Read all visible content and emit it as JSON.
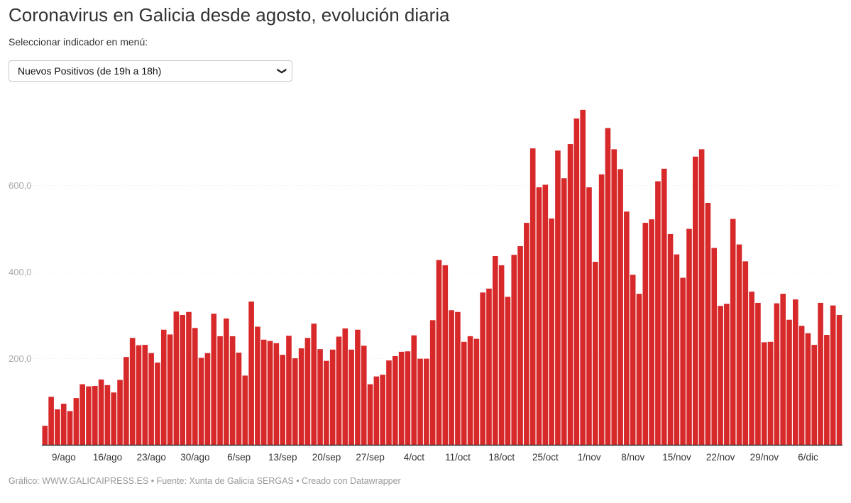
{
  "title": "Coronavirus en Galicia desde agosto, evolución diaria",
  "selector": {
    "label": "Seleccionar indicador en menú:",
    "selected": "Nuevos Positivos (de 19h a 18h)",
    "icon": "chevron-down-icon"
  },
  "footer": "Gráfico: WWW.GALICAIPRESS.ES • Fuente: Xunta de Galicia SERGAS • Creado con Datawrapper",
  "colors": {
    "bar": "#d7282a",
    "axis": "#333333",
    "tick_label": "#aaaaaa"
  },
  "chart_data": {
    "type": "bar",
    "title": "",
    "xlabel": "",
    "ylabel": "",
    "ylim": [
      0,
      780
    ],
    "grid": false,
    "y_ticks": [
      200,
      400,
      600
    ],
    "y_tick_labels": [
      "200,0",
      "400,0",
      "600,0"
    ],
    "x_tick_labels": [
      "9/ago",
      "16/ago",
      "23/ago",
      "30/ago",
      "6/sep",
      "13/sep",
      "20/sep",
      "27/sep",
      "4/oct",
      "11/oct",
      "18/oct",
      "25/oct",
      "1/nov",
      "8/nov",
      "15/nov",
      "22/nov",
      "29/nov",
      "6/dic"
    ],
    "categories": [
      "6/ago",
      "7/ago",
      "8/ago",
      "9/ago",
      "10/ago",
      "11/ago",
      "12/ago",
      "13/ago",
      "14/ago",
      "15/ago",
      "16/ago",
      "17/ago",
      "18/ago",
      "19/ago",
      "20/ago",
      "21/ago",
      "22/ago",
      "23/ago",
      "24/ago",
      "25/ago",
      "26/ago",
      "27/ago",
      "28/ago",
      "29/ago",
      "30/ago",
      "31/ago",
      "1/sep",
      "2/sep",
      "3/sep",
      "4/sep",
      "5/sep",
      "6/sep",
      "7/sep",
      "8/sep",
      "9/sep",
      "10/sep",
      "11/sep",
      "12/sep",
      "13/sep",
      "14/sep",
      "15/sep",
      "16/sep",
      "17/sep",
      "18/sep",
      "19/sep",
      "20/sep",
      "21/sep",
      "22/sep",
      "23/sep",
      "24/sep",
      "25/sep",
      "26/sep",
      "27/sep",
      "28/sep",
      "29/sep",
      "30/sep",
      "1/oct",
      "2/oct",
      "3/oct",
      "4/oct",
      "5/oct",
      "6/oct",
      "7/oct",
      "8/oct",
      "9/oct",
      "10/oct",
      "11/oct",
      "12/oct",
      "13/oct",
      "14/oct",
      "15/oct",
      "16/oct",
      "17/oct",
      "18/oct",
      "19/oct",
      "20/oct",
      "21/oct",
      "22/oct",
      "23/oct",
      "24/oct",
      "25/oct",
      "26/oct",
      "27/oct",
      "28/oct",
      "29/oct",
      "30/oct",
      "31/oct",
      "1/nov",
      "2/nov",
      "3/nov",
      "4/nov",
      "5/nov",
      "6/nov",
      "7/nov",
      "8/nov",
      "9/nov",
      "10/nov",
      "11/nov",
      "12/nov",
      "13/nov",
      "14/nov",
      "15/nov",
      "16/nov",
      "17/nov",
      "18/nov",
      "19/nov",
      "20/nov",
      "21/nov",
      "22/nov",
      "23/nov",
      "24/nov",
      "25/nov",
      "26/nov",
      "27/nov",
      "28/nov",
      "29/nov",
      "30/nov",
      "1/dic",
      "2/dic",
      "3/dic",
      "4/dic",
      "5/dic",
      "6/dic",
      "7/dic",
      "8/dic",
      "9/dic",
      "10/dic",
      "11/dic"
    ],
    "values": [
      44,
      111,
      82,
      95,
      78,
      108,
      140,
      135,
      136,
      151,
      138,
      121,
      150,
      203,
      247,
      230,
      231,
      212,
      190,
      266,
      255,
      308,
      300,
      307,
      270,
      201,
      212,
      303,
      251,
      292,
      251,
      213,
      160,
      331,
      273,
      243,
      240,
      235,
      208,
      252,
      200,
      223,
      247,
      280,
      221,
      194,
      220,
      250,
      269,
      220,
      266,
      229,
      140,
      158,
      162,
      195,
      205,
      215,
      216,
      253,
      199,
      199,
      288,
      427,
      415,
      311,
      307,
      238,
      251,
      245,
      352,
      361,
      436,
      415,
      342,
      439,
      459,
      513,
      685,
      595,
      601,
      523,
      680,
      616,
      695,
      754,
      774,
      595,
      423,
      625,
      732,
      683,
      637,
      539,
      393,
      349,
      513,
      521,
      609,
      638,
      487,
      440,
      386,
      499,
      666,
      683,
      559,
      455,
      321,
      326,
      522,
      463,
      424,
      354,
      328,
      237,
      238,
      327,
      349,
      289,
      336,
      275,
      258,
      231,
      328,
      254,
      322,
      300
    ]
  }
}
